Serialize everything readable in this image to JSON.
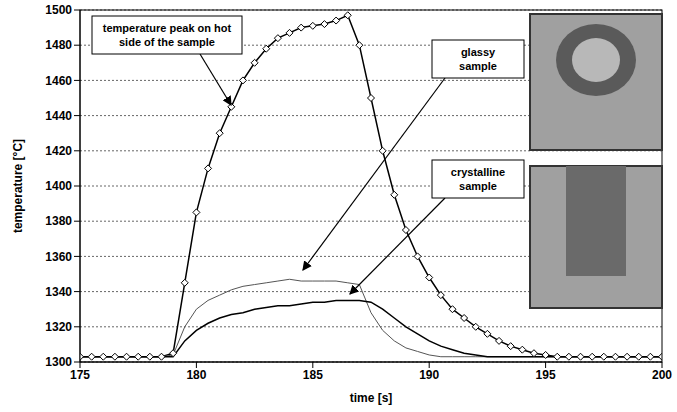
{
  "chart_data": {
    "type": "line",
    "x_label": "time [s]",
    "y_label": "temperature [°C]",
    "xlim": [
      175,
      200
    ],
    "xticks": [
      175,
      180,
      185,
      190,
      195,
      200
    ],
    "ylim": [
      1300,
      1500
    ],
    "yticks": [
      1300,
      1320,
      1340,
      1360,
      1380,
      1400,
      1420,
      1440,
      1460,
      1480,
      1500
    ],
    "grid": true,
    "x": [
      175,
      175.5,
      176,
      176.5,
      177,
      177.5,
      178,
      178.5,
      179,
      179.5,
      180,
      180.5,
      181,
      181.5,
      182,
      182.5,
      183,
      183.5,
      184,
      184.5,
      185,
      185.5,
      186,
      186.5,
      187,
      187.5,
      188,
      188.5,
      189,
      189.5,
      190,
      190.5,
      191,
      191.5,
      192,
      192.5,
      193,
      193.5,
      194,
      194.5,
      195,
      195.5,
      196,
      196.5,
      197,
      197.5,
      198,
      198.5,
      199,
      199.5,
      200
    ],
    "series": [
      {
        "name": "temperature peak on hot side of the sample",
        "color": "#000000",
        "marker": "diamond",
        "values": [
          1303,
          1303,
          1303,
          1303,
          1303,
          1303,
          1303,
          1303,
          1305,
          1345,
          1385,
          1410,
          1430,
          1445,
          1460,
          1470,
          1478,
          1484,
          1487,
          1490,
          1491,
          1492,
          1494,
          1497,
          1480,
          1450,
          1420,
          1395,
          1375,
          1360,
          1348,
          1338,
          1330,
          1325,
          1320,
          1316,
          1312,
          1309,
          1307,
          1305,
          1304,
          1303,
          1303,
          1303,
          1303,
          1303,
          1303,
          1303,
          1303,
          1303,
          1303
        ]
      },
      {
        "name": "glassy sample",
        "color": "#555555",
        "marker": "none",
        "values": [
          1303,
          1303,
          1303,
          1303,
          1303,
          1303,
          1303,
          1303,
          1304,
          1320,
          1330,
          1335,
          1338,
          1341,
          1343,
          1344,
          1345,
          1346,
          1347,
          1346,
          1346,
          1346,
          1346,
          1345,
          1344,
          1328,
          1318,
          1312,
          1308,
          1306,
          1304,
          1303,
          1303,
          1303,
          1303,
          1303,
          1303,
          1303,
          1303,
          1303,
          1303,
          1303,
          1303,
          1303,
          1303,
          1303,
          1303,
          1303,
          1303,
          1303,
          1303
        ]
      },
      {
        "name": "crystalline sample",
        "color": "#000000",
        "marker": "none",
        "values": [
          1303,
          1303,
          1303,
          1303,
          1303,
          1303,
          1303,
          1303,
          1303,
          1312,
          1318,
          1322,
          1325,
          1327,
          1328,
          1330,
          1331,
          1332,
          1332,
          1333,
          1334,
          1334,
          1335,
          1335,
          1335,
          1334,
          1330,
          1325,
          1320,
          1316,
          1312,
          1309,
          1307,
          1305,
          1304,
          1303,
          1303,
          1303,
          1303,
          1303,
          1303,
          1303,
          1303,
          1303,
          1303,
          1303,
          1303,
          1303,
          1303,
          1303,
          1303
        ]
      }
    ]
  }
}
